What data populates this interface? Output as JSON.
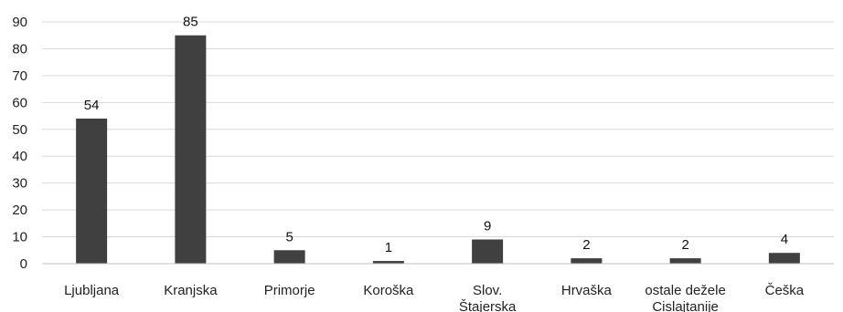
{
  "chart_data": {
    "type": "bar",
    "categories": [
      [
        "Ljubljana"
      ],
      [
        "Kranjska"
      ],
      [
        "Primorje"
      ],
      [
        "Koroška"
      ],
      [
        "Slov.",
        "Štajerska"
      ],
      [
        "Hrvaška"
      ],
      [
        "ostale dežele",
        "Cislajtanije"
      ],
      [
        "Češka"
      ]
    ],
    "values": [
      54,
      85,
      5,
      1,
      9,
      2,
      2,
      4
    ],
    "ylim": [
      0,
      90
    ],
    "yticks": [
      0,
      10,
      20,
      30,
      40,
      50,
      60,
      70,
      80,
      90
    ],
    "grid": true,
    "legend": "none",
    "bar_color": "#404040",
    "grid_color": "#d9d9d9",
    "text_color": "#222222"
  }
}
